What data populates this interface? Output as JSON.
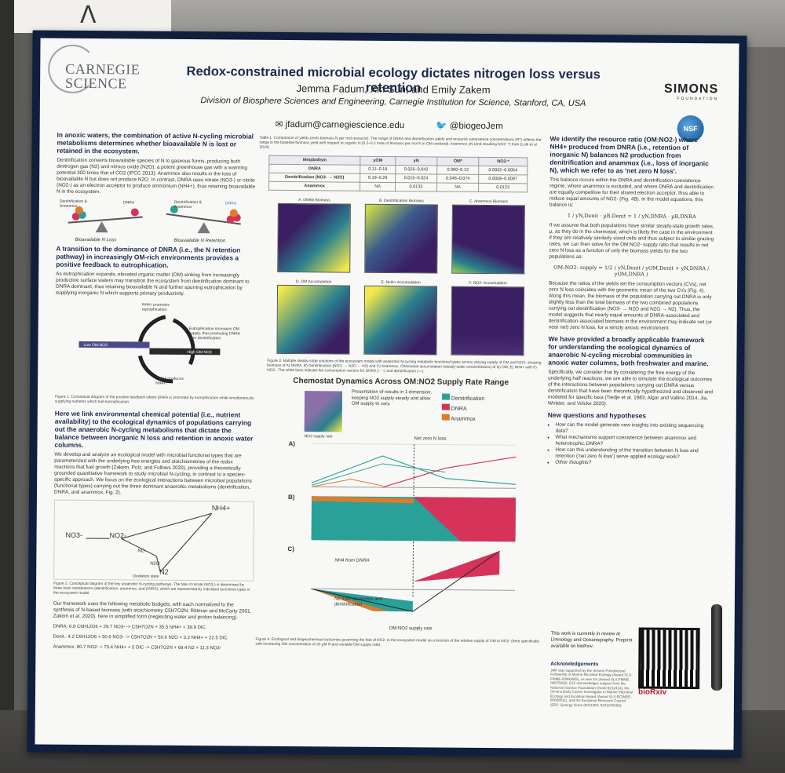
{
  "poster": {
    "title": "Redox-constrained microbial ecology dictates nitrogen loss versus retention",
    "authors": "Jemma Fadum, Xin Sun, and Emily Zakem",
    "affiliation": "Division of Biosphere Sciences and Engineering, Carnegie Institution for Science, Stanford, CA, USA",
    "email": "jfadum@carnegiescience.edu",
    "handle": "@biogeoJem",
    "logo_left": "CARNEGIE SCIENCE",
    "logo_right": "SIMONS",
    "logo_right_sub": "FOUNDATION",
    "nsf": "NSF"
  },
  "col1": {
    "h1": "In anoxic waters, the combination of active N-cycling microbial metabolisms determines whether bioavailable N is lost or retained in the ecosystem.",
    "p1": "Denitrification converts bioavailable species of N to gaseous forms, producing both dinitrogen gas (N2) and nitrous oxide (N2O), a potent greenhouse gas with a warming potential 300 times that of CO2 (IPCC 2013). Anammox also results in the loss of bioavailable N but does not produce N2O. In contrast, DNRA uses nitrate (NO3-) or nitrite (NO2-) as an electron acceptor to produce ammonium (NH4+), thus retaining bioavailable N in the ecosystem.",
    "seesaw_l1": "Denitrification & Anammox",
    "seesaw_l2": "DNRA",
    "seesaw_r1": "Denitrification & Anammox",
    "seesaw_r2": "DNRA",
    "seesaw_cap_l": "Bioavailable N Loss",
    "seesaw_cap_r": "Bioavailable N Retention",
    "h2": "A transition to the dominance of DNRA (i.e., the N retention pathway) in increasingly OM-rich environments provides a positive feedback to eutrophication.",
    "p2": "As eutrophication expands, elevated organic matter (OM) sinking from increasingly productive surface waters may transition the ecosystem from denitrification dominant to DNRA dominant, thus retaining bioavailable N and further spurring eutrophication by supplying inorganic N which supports primary productivity.",
    "cycle_top": "NH4+ promotes eutrophication.",
    "cycle_right": "Eutrophication increases OM supply, thus promoting DNRA over denitrification.",
    "cycle_bottom": "DNRA produces NH4+.",
    "cycle_low": "Low OM:NO3",
    "cycle_high": "High OM:NO3",
    "fig1_cap": "Figure 1. Conceptual diagram of the positive feedback where DNRA is promoted by eutrophication while simultaneously supplying nutrients which fuel eutrophication.",
    "h3": "Here we link environmental chemical potential (i.e., nutrient availability) to the ecological dynamics of populations carrying out the anaerobic N-cycling metabolisms that dictate the balance between inorganic N loss and retention in anoxic water columns.",
    "p3": "We develop and analyze an ecological model with microbial functional types that are parameterized with the underlying free energies and stoichiometries of the redox reactions that fuel growth (Zakem, Polz, and Follows 2020), providing a theoretically grounded quantitative framework to study microbial N-cycling, in contrast to a species-specific approach. We focus on the ecological interactions between microbial populations (functional types) carrying out the three dominant anaerobic metabolisms (denitrification, DNRA, and anammox, Fig. 2).",
    "fig2_labels": [
      "NO3-",
      "NO2-",
      "NO",
      "N2O",
      "N2",
      "NH4+"
    ],
    "fig2_axis": "Oxidation state",
    "fig2_cap": "Figure 2. Conceptual diagram of the key anaerobic N-cycling pathways. The fate of nitrate (NO3-) is determined by three main metabolisms (denitrification, anammox, and DNRA), which are represented by individual functional types in the ecosystem model.",
    "p4": "Our framework uses the following metabolic budgets, with each normalized to the synthesis of N-based biomass (with stoichiometry C5H7O2N; Rittman and McCarty 2001, Zakem et al. 2020), here in simplified form (neglecting water and proton balancing).",
    "eq_dnra": "DNRA: 6.8 C6H12O6 + 29.7 NO3- -> C5H7O2N + 35.5 NH4+ + 39.9 DIC",
    "eq_denit": "Denit.: 4.2 C6H12O6 + 50.6 NO3- -> C5H7O2N + 50.6 N2O + 3.2 NH4+ + 22.5 DIC",
    "eq_anammox": "Anammox: 80.7 NO2- + 70.4 NH4+ + 5 DIC -> C5H7O2N + 69.4 N2 + 11.3 NO3-"
  },
  "col2": {
    "table_cap": "Table 1. Comparison of yields (mols biomass N per mol resource). The range of DNRA and denitrification yields and resource subsistence concentrations (R*) reflects the range in the baseline biomass yield with respect to organic N (0.2–0.3 mols of biomass per mol N in OM oxidized). Anammox yN (and resulting NO2- *) from (Lotti et al. 2014).",
    "table_head": [
      "Metabolism",
      "yOM",
      "yN",
      "OM*",
      "NO2-*"
    ],
    "table_rows": [
      [
        "DNRA",
        "0.11–0.18",
        "0.026–0.042",
        "0.080–0.12",
        "0.0032–0.0054"
      ],
      [
        "Denitrification (NO3- → N2O)",
        "0.19–0.29",
        "0.015–0.024",
        "0.048–0.074",
        "0.0058–0.0097"
      ],
      [
        "Anammox",
        "NA",
        "0.0133",
        "NA",
        "0.0123"
      ]
    ],
    "panel_titles": [
      "A. DNRA Biomass",
      "B. Denitrification Biomass",
      "C. Anammox Biomass",
      "D. OM Accumulation",
      "E. NH4+ Accumulation",
      "F. NO2- Accumulation"
    ],
    "panel_xlabel": "Incoming NO2- Concentration (µM N)",
    "panel_ylabel": "Incoming OM Concentration (µM N)",
    "fig3_cap": "Figure 3. Multiple steady-state solutions of the ecosystem model with anaerobic N-cycling metabolic functional types across varying supply of OM and NO2- showing biomass of A) DNRA, B) Denitrification (NO3- → N2O → N2) and C) Anammox. Chemostat accumulation (steady-state concentrations) of D) OM, E) NH4+ with F) NO2-. The white lines indicate the consumption vectors for DNRA (- - -) and denitrification (—).",
    "chem_title": "Chemostat Dynamics Across OM:NO2 Supply Rate Range",
    "chem_note": "Presentation of results in 1-dimension, keeping NO2 supply steady and allow OM supply to vary.",
    "chem_axis": "NO2 supply rate",
    "legend": [
      {
        "label": "Denitrification",
        "color": "#2aa198"
      },
      {
        "label": "DNRA",
        "color": "#d6335a"
      },
      {
        "label": "Anammox",
        "color": "#e07b2a"
      }
    ],
    "panel_a_label": "A)",
    "panel_b_label": "B)",
    "panel_c_label": "C)",
    "ylab_a": "Biomass (µmol N)",
    "ylab_b": "Relative rate (% of NO2 uptake)",
    "ylab_c": "NO2 Fate Flux (µmol N m-3 d-1)",
    "net_zero": "Net zero N loss",
    "denit_cv": "Denitrification CV",
    "dnra_cv": "DNRA CV",
    "nh4_dnra": "NH4 from DNRA",
    "n2_label": "N2 from anammox and denitrification",
    "x_axis": "OM:NO2 supply rate",
    "x_ticks": [
      "0.00",
      "0.05",
      "0.10",
      "0.15",
      "0.20",
      "0.25"
    ],
    "b_ticks": [
      "100",
      "75",
      "50",
      "25",
      "0"
    ],
    "c_ticks": [
      "1.0",
      "0.5",
      "0.0",
      "-0.5",
      "-1.0"
    ],
    "a_ticks": [
      "1.00",
      "0.75",
      "0.50",
      "0.25",
      "0.00"
    ],
    "fig4_cap": "Figure 4. Ecological and biogeochemical outcomes governing the fate of NO2- in the ecosystem model as a function of the relative supply of OM to NO2- (here specifically with increasing OM concentration of 25 µM N and variable OM supply rate)."
  },
  "col3": {
    "h1": "We identify the resource ratio (OM:NO2-) where NH4+ produced from DNRA (i.e., retention of inorganic N) balances N2 production from denitrification and anammox (i.e., loss of inorganic N), which we refer to as 'net zero N loss'.",
    "p1": "This balance occurs within the DNRA and denitrification coexistence regime, where anammox is excluded, and where DNRA and denitrification are equally competitive for their shared electron acceptor, thus able to reduce equal amounts of NO2- (Fig. 4B). In the model equations, this balance is:",
    "eq1": "1 / yN,Denit · µB,Denit = 1 / yN,DNRA · µB,DNRA",
    "p2": "If we assume that both populations have similar steady-state growth rates, µ, as they do in the chemostat, which is likely the case in the environment if they are relatively similarly sized cells and thus subject to similar grazing rates, we can then solve for the OM:NO2- supply ratio that results in net zero N loss as a function of only the biomass yields for the two populations as:",
    "eq2": "OM:NO2- supply = 1/2 ( yN,Denit / yOM,Denit + yN,DNRA / yOM,DNRA )",
    "p3": "Because the ratios of the yields set the consumption vectors (CVs), net zero N loss coincides with the geometric mean of the two CVs (Fig. 4). Along this mean, the biomass of the population carrying out DNRA is only slightly less than the total biomass of the two combined populations carrying out denitrification (NO3- → N2O and N2O → N2). Thus, the model suggests that nearly equal amounts of DNRA-associated and denitrification-associated biomass in the environment may indicate net (or near net) zero N loss, for a strictly anoxic environment.",
    "h2": "We have provided a broadly applicable framework for understanding the ecological dynamics of anaerobic N-cycling microbial communities in anoxic water columns, both freshwater and marine.",
    "p4": "Specifically, we consider that by considering the free energy of the underlying half reactions, we are able to simulate the ecological outcomes of the interactions between populations carrying out DNRA versus denitrification that have been theoretically hypothesized and observed and modeled for specific taxa (Tiedje et al. 1983, Algar and Vallino 2014, Jia, Winkler, and Volcke 2020).",
    "h3": "New questions and hypotheses",
    "bullets": [
      "How can the model generate new insights into existing sequencing data?",
      "What mechanisms support coexistence between anammox and heterotrophic DNRA?",
      "How can this understanding of the transition between N loss and retention ('net zero N loss') serve applied ecology work?",
      "Other thoughts?"
    ],
    "review": "This work is currently in review at Limnology and Oceanography. Preprint available on bioRxiv.",
    "ack_title": "Acknowledgements",
    "ack": "JMF was supported by the Simons Postdoctoral Fellowship in Marine Microbial Ecology (Award SLS-FMME-00993655), as was XS (Award SLS-FMME-00875083). EJZ acknowledges support from the National Science Foundation (Grant 6212414), the Simons Early Career Investigator in Marine Microbial Ecology and Evolution Award (Award SLS-ECIMEE-00000011), and the European Research Council (ERC Synergy Grant (5011355, 6101245483).",
    "biorxiv": "bioRxiv"
  }
}
